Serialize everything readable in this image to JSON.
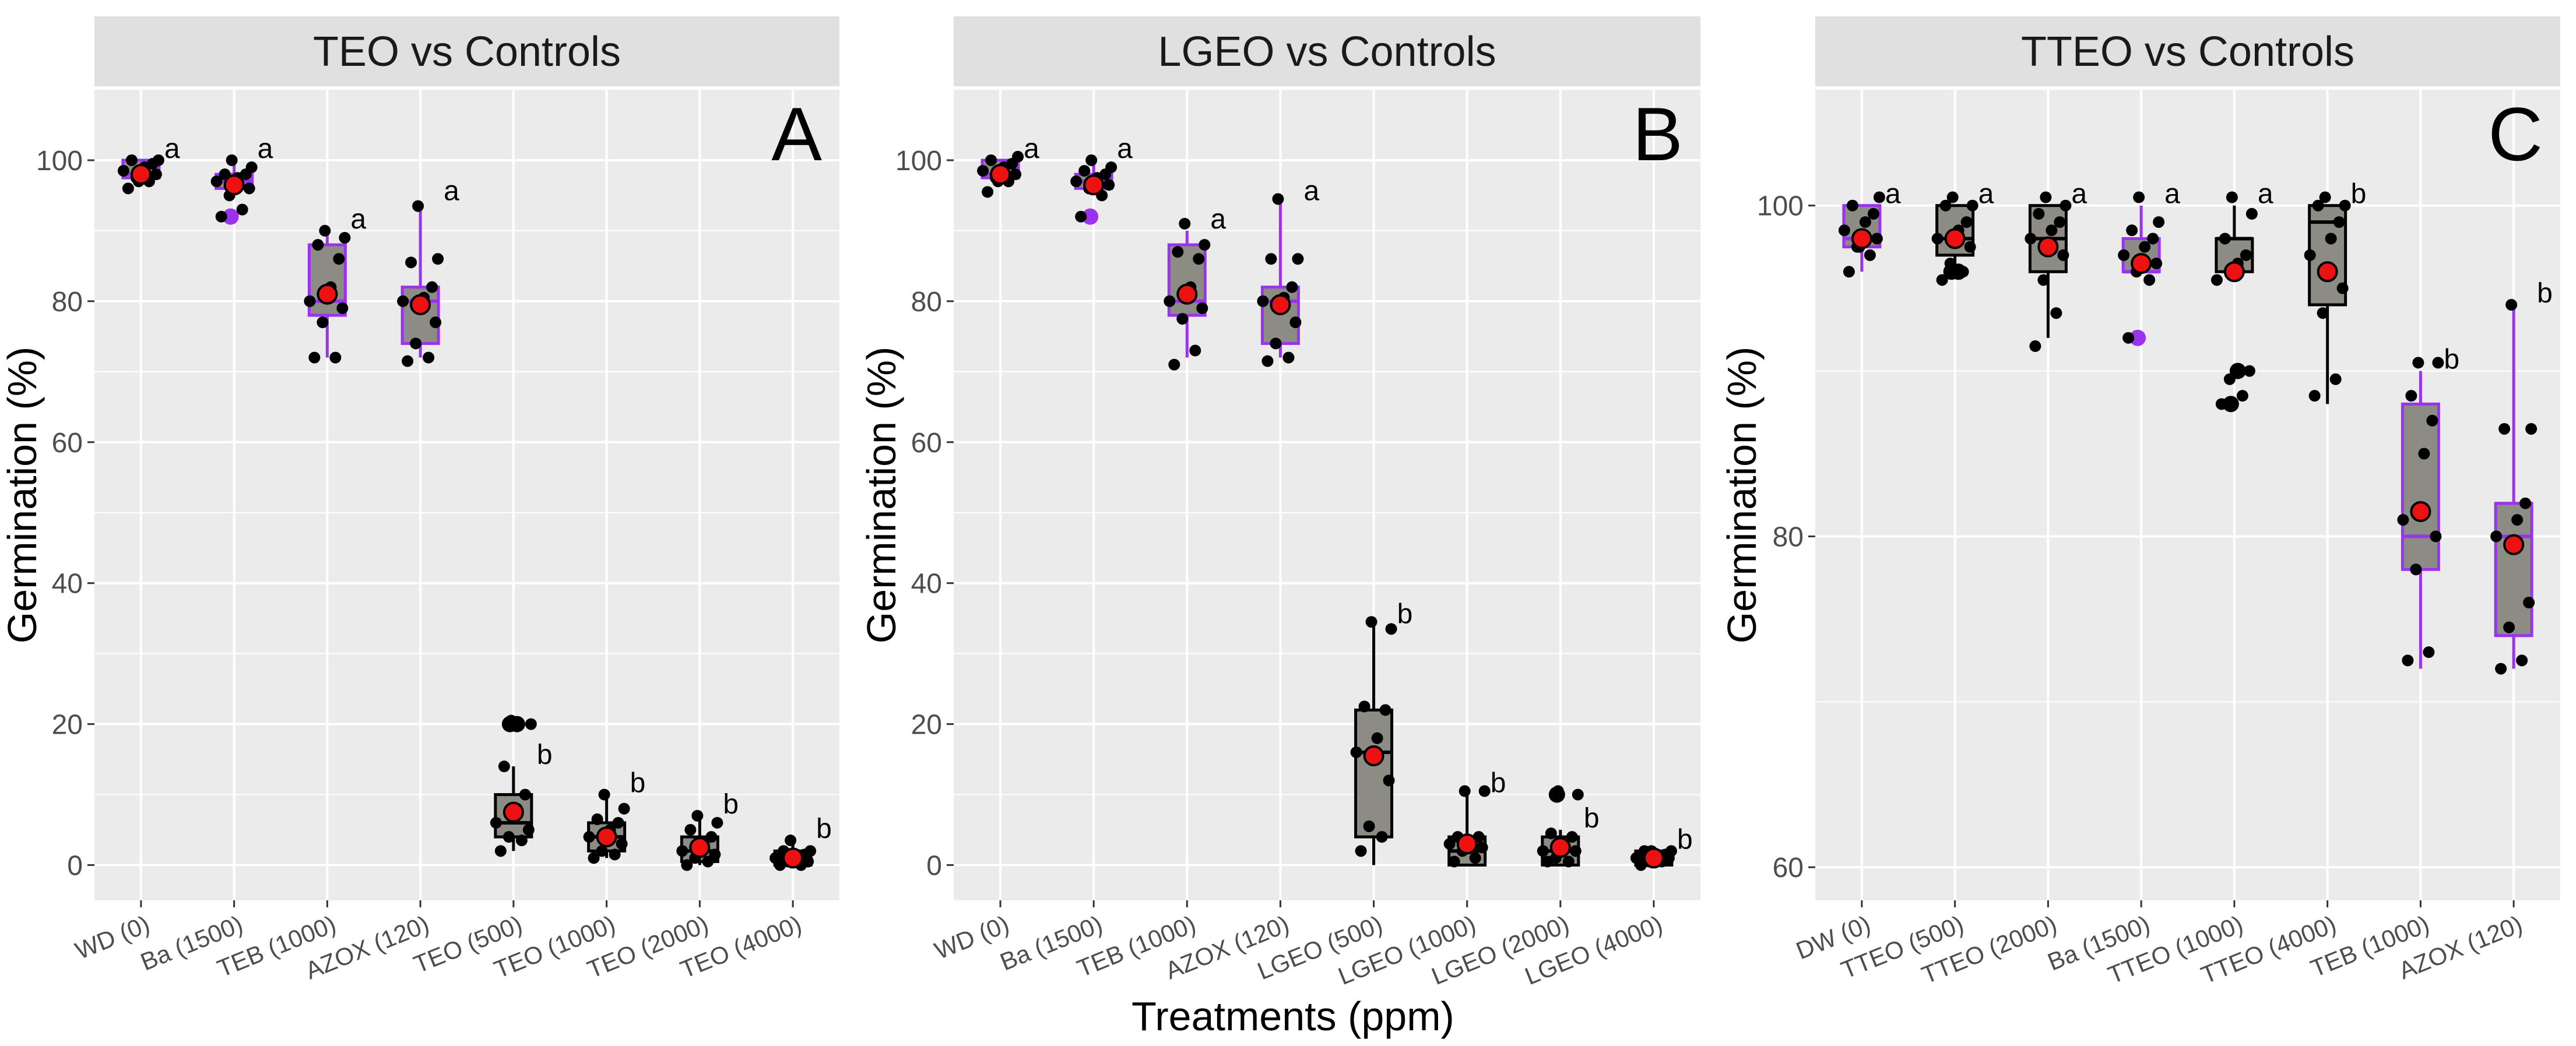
{
  "figure": {
    "xlabel": "Treatments (ppm)",
    "colors": {
      "panel_bg": "#ebebeb",
      "strip_bg": "#e0e0e0",
      "grid": "#ffffff",
      "box_fill": "#8c8c84",
      "highlight": "#9933ee",
      "normal": "#000000",
      "mean": "#ee1111",
      "point": "#000000"
    }
  },
  "chart_data": [
    {
      "type": "box",
      "title": "TEO vs Controls",
      "tag": "A",
      "xlabel": "Treatments (ppm)",
      "ylabel": "Germination (%)",
      "ylim": [
        -5,
        110
      ],
      "yticks": [
        0,
        20,
        40,
        60,
        80,
        100
      ],
      "categories": [
        "WD (0)",
        "Ba (1500)",
        "TEB (1000)",
        "AZOX (120)",
        "TEO (500)",
        "TEO (1000)",
        "TEO (2000)",
        "TEO (4000)"
      ],
      "boxes": [
        {
          "q1": 97.5,
          "median": 98,
          "q3": 100,
          "whisker_low": 97.5,
          "whisker_high": 100,
          "mean": 98,
          "letter": "a",
          "highlight": true,
          "outliers": [],
          "points": [
            96,
            97,
            97.5,
            98,
            98.5,
            99,
            99.5,
            100,
            100,
            97
          ]
        },
        {
          "q1": 96,
          "median": 97,
          "q3": 98,
          "whisker_low": 96,
          "whisker_high": 100,
          "mean": 96.5,
          "letter": "a",
          "highlight": true,
          "outliers": [
            92
          ],
          "points": [
            92,
            93,
            95,
            96,
            97,
            97.5,
            98,
            98,
            99,
            100
          ]
        },
        {
          "q1": 78,
          "median": 80,
          "q3": 88,
          "whisker_low": 72,
          "whisker_high": 90,
          "mean": 81,
          "letter": "a",
          "highlight": true,
          "outliers": [],
          "points": [
            72,
            72,
            77,
            79,
            80,
            82,
            86,
            88,
            89,
            90
          ]
        },
        {
          "q1": 74,
          "median": 80,
          "q3": 82,
          "whisker_low": 72,
          "whisker_high": 94,
          "mean": 79.5,
          "letter": "a",
          "highlight": true,
          "outliers": [],
          "points": [
            71.5,
            72,
            74,
            77,
            80,
            80.5,
            82,
            85.5,
            86,
            93.5
          ]
        },
        {
          "q1": 4,
          "median": 6,
          "q3": 10,
          "whisker_low": 2,
          "whisker_high": 14,
          "mean": 7.5,
          "letter": "b",
          "highlight": false,
          "outliers": [
            20,
            20
          ],
          "points": [
            2,
            3.5,
            4,
            5,
            6,
            8,
            10,
            14,
            20,
            20.5
          ]
        },
        {
          "q1": 2,
          "median": 4,
          "q3": 6,
          "whisker_low": 1,
          "whisker_high": 10,
          "mean": 4,
          "letter": "b",
          "highlight": false,
          "outliers": [],
          "points": [
            1,
            1.5,
            2,
            3,
            4,
            5,
            6,
            6.5,
            8,
            10
          ]
        },
        {
          "q1": 0.5,
          "median": 2,
          "q3": 4,
          "whisker_low": 0,
          "whisker_high": 7,
          "mean": 2.5,
          "letter": "b",
          "highlight": false,
          "outliers": [],
          "points": [
            0,
            0.5,
            1,
            1.5,
            2,
            3,
            4,
            5,
            6,
            7
          ]
        },
        {
          "q1": 0,
          "median": 1,
          "q3": 2,
          "whisker_low": 0,
          "whisker_high": 3.5,
          "mean": 1,
          "letter": "b",
          "highlight": false,
          "outliers": [],
          "points": [
            0,
            0,
            0.5,
            0.5,
            1,
            1,
            1.5,
            2,
            2,
            3.5
          ]
        }
      ]
    },
    {
      "type": "box",
      "title": "LGEO vs Controls",
      "tag": "B",
      "xlabel": "Treatments (ppm)",
      "ylabel": "Germination (%)",
      "ylim": [
        -5,
        110
      ],
      "yticks": [
        0,
        20,
        40,
        60,
        80,
        100
      ],
      "categories": [
        "WD (0)",
        "Ba (1500)",
        "TEB (1000)",
        "AZOX (120)",
        "LGEO (500)",
        "LGEO (1000)",
        "LGEO (2000)",
        "LGEO (4000)"
      ],
      "boxes": [
        {
          "q1": 97.5,
          "median": 98,
          "q3": 100,
          "whisker_low": 97.5,
          "whisker_high": 100,
          "mean": 98,
          "letter": "a",
          "highlight": true,
          "outliers": [],
          "points": [
            95.5,
            97,
            97.5,
            98,
            98.5,
            99,
            99.5,
            100,
            100.5,
            97
          ]
        },
        {
          "q1": 96,
          "median": 97,
          "q3": 98,
          "whisker_low": 96,
          "whisker_high": 100,
          "mean": 96.5,
          "letter": "a",
          "highlight": true,
          "outliers": [
            92
          ],
          "points": [
            92,
            95,
            96,
            96.5,
            97,
            97.5,
            98,
            98.5,
            99,
            100
          ]
        },
        {
          "q1": 78,
          "median": 80,
          "q3": 88,
          "whisker_low": 72,
          "whisker_high": 90,
          "mean": 81,
          "letter": "a",
          "highlight": true,
          "outliers": [],
          "points": [
            71,
            73,
            77.5,
            79,
            80,
            82,
            86,
            87,
            88,
            91
          ]
        },
        {
          "q1": 74,
          "median": 80,
          "q3": 82,
          "whisker_low": 72,
          "whisker_high": 94,
          "mean": 79.5,
          "letter": "a",
          "highlight": true,
          "outliers": [],
          "points": [
            71.5,
            72,
            74,
            77,
            80,
            80.5,
            82,
            86,
            86,
            94.5
          ]
        },
        {
          "q1": 4,
          "median": 16,
          "q3": 22,
          "whisker_low": 0,
          "whisker_high": 34,
          "mean": 15.5,
          "letter": "b",
          "highlight": false,
          "outliers": [],
          "points": [
            2,
            4,
            5.5,
            12,
            16,
            18,
            22,
            22.5,
            33.5,
            34.5
          ]
        },
        {
          "q1": 0,
          "median": 2,
          "q3": 4,
          "whisker_low": 0,
          "whisker_high": 10,
          "mean": 3,
          "letter": "b",
          "highlight": false,
          "outliers": [],
          "points": [
            0.5,
            1,
            2,
            2.5,
            3,
            3.5,
            4,
            4,
            10.5,
            10.5
          ]
        },
        {
          "q1": 0,
          "median": 2,
          "q3": 4,
          "whisker_low": 0,
          "whisker_high": 5,
          "mean": 2.5,
          "letter": "b",
          "highlight": false,
          "outliers": [
            10
          ],
          "points": [
            0.5,
            0.5,
            1,
            2,
            2,
            2.5,
            4,
            4.5,
            10,
            10.5
          ]
        },
        {
          "q1": 0,
          "median": 1,
          "q3": 2,
          "whisker_low": 0,
          "whisker_high": 2,
          "mean": 1,
          "letter": "b",
          "highlight": false,
          "outliers": [],
          "points": [
            0,
            0.5,
            0.5,
            1,
            1,
            1,
            1.5,
            2,
            2,
            2
          ]
        }
      ]
    },
    {
      "type": "box",
      "title": "TTEO vs Controls",
      "tag": "C",
      "xlabel": "Treatments (ppm)",
      "ylabel": "Germination (%)",
      "ylim": [
        58,
        107
      ],
      "yticks": [
        60,
        80,
        100
      ],
      "categories": [
        "DW (0)",
        "TTEO (500)",
        "TTEO (2000)",
        "Ba (1500)",
        "TTEO (1000)",
        "TTEO (4000)",
        "TEB (1000)",
        "AZOX (120)"
      ],
      "boxes": [
        {
          "q1": 97.5,
          "median": 98,
          "q3": 100,
          "whisker_low": 96,
          "whisker_high": 100,
          "mean": 98,
          "letter": "a",
          "highlight": true,
          "outliers": [],
          "points": [
            96,
            97,
            97.5,
            98,
            98.5,
            99,
            99.5,
            100,
            100.5,
            97.5
          ]
        },
        {
          "q1": 97,
          "median": 98,
          "q3": 100,
          "whisker_low": 96,
          "whisker_high": 100,
          "mean": 98,
          "letter": "a",
          "highlight": false,
          "outliers": [
            96,
            96
          ],
          "points": [
            95.5,
            96,
            96.5,
            97.5,
            98,
            98.5,
            99,
            100,
            100,
            100.5
          ]
        },
        {
          "q1": 96,
          "median": 98,
          "q3": 100,
          "whisker_low": 92,
          "whisker_high": 100,
          "mean": 97.5,
          "letter": "a",
          "highlight": false,
          "outliers": [],
          "points": [
            91.5,
            93.5,
            95.5,
            97,
            98,
            98.5,
            99,
            99.5,
            100,
            100.5
          ]
        },
        {
          "q1": 96,
          "median": 96,
          "q3": 98,
          "whisker_low": 96,
          "whisker_high": 100,
          "mean": 96.5,
          "letter": "a",
          "highlight": true,
          "outliers": [
            92
          ],
          "points": [
            92,
            95.5,
            96,
            96.5,
            97,
            97.5,
            98,
            98.5,
            99,
            100.5
          ]
        },
        {
          "q1": 96,
          "median": 98,
          "q3": 98,
          "whisker_low": 96,
          "whisker_high": 100,
          "mean": 96,
          "letter": "a",
          "highlight": false,
          "outliers": [
            88,
            90
          ],
          "points": [
            88,
            88.5,
            89.5,
            90,
            95.5,
            96.5,
            97,
            98,
            99.5,
            100.5
          ]
        },
        {
          "q1": 94,
          "median": 99,
          "q3": 100,
          "whisker_low": 88,
          "whisker_high": 100,
          "mean": 96,
          "letter": "b",
          "highlight": false,
          "outliers": [],
          "points": [
            88.5,
            89.5,
            93.5,
            95,
            97,
            98,
            99,
            100,
            100,
            100.5
          ]
        },
        {
          "q1": 78,
          "median": 80,
          "q3": 88,
          "whisker_low": 72,
          "whisker_high": 90,
          "mean": 81.5,
          "letter": "b",
          "highlight": true,
          "outliers": [],
          "points": [
            72.5,
            73,
            78,
            80,
            81,
            85,
            87,
            88.5,
            90.5,
            90.5
          ]
        },
        {
          "q1": 74,
          "median": 80,
          "q3": 82,
          "whisker_low": 72,
          "whisker_high": 94,
          "mean": 79.5,
          "letter": "b",
          "highlight": true,
          "outliers": [],
          "points": [
            72,
            72.5,
            74.5,
            76,
            80,
            81,
            82,
            86.5,
            86.5,
            94
          ]
        }
      ]
    }
  ]
}
